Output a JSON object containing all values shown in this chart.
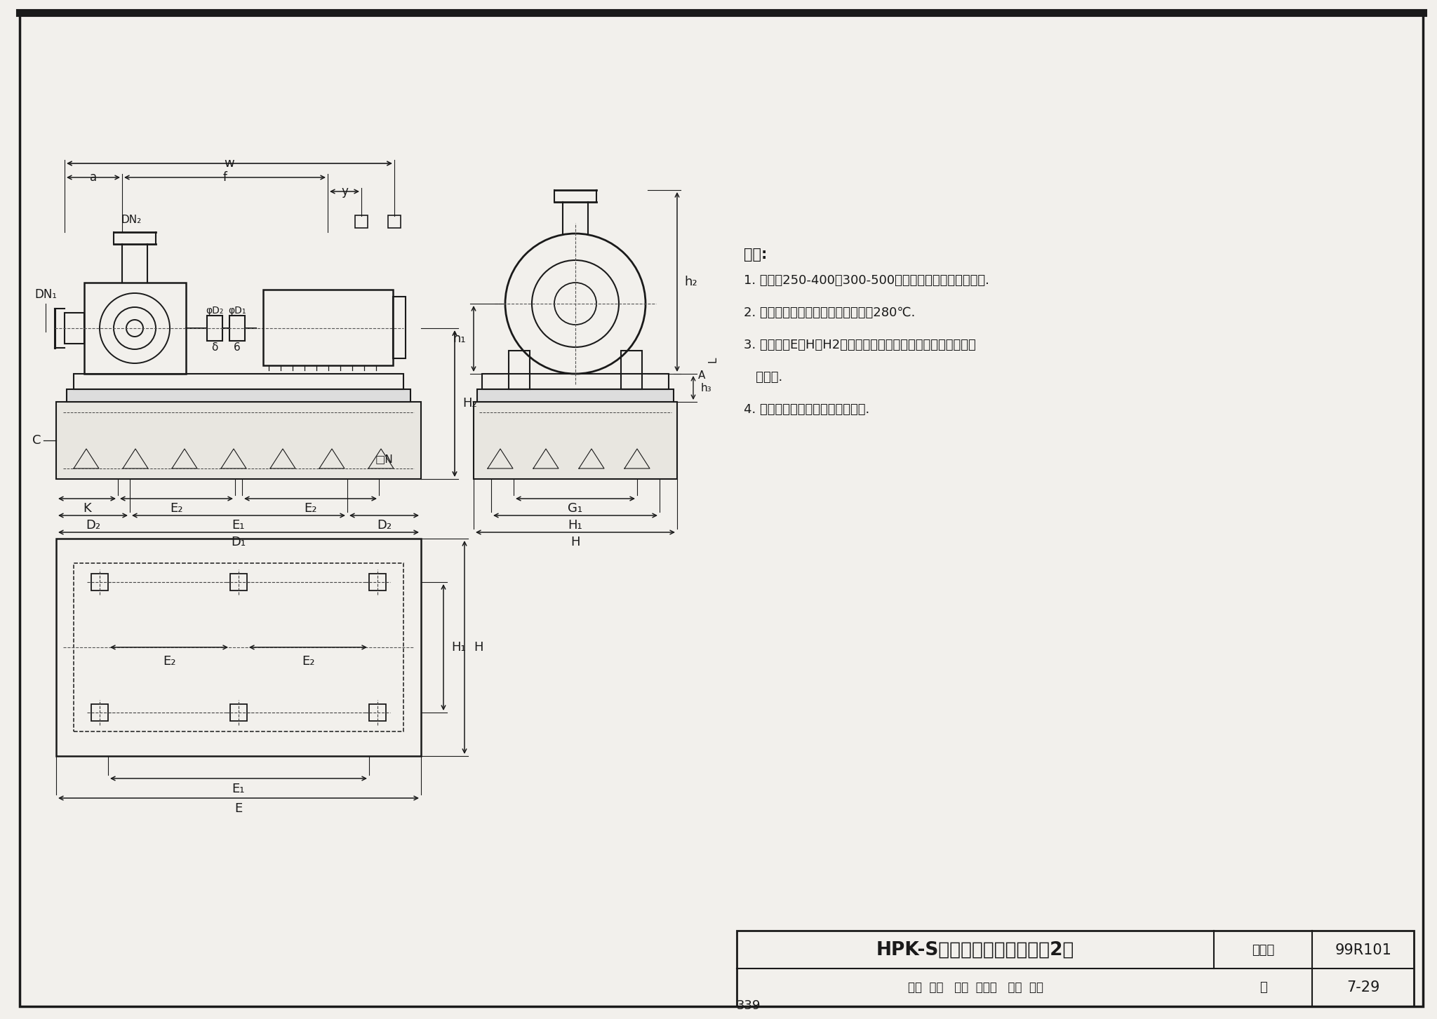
{
  "bg_color": "#f2f0ec",
  "line_color": "#1a1a1a",
  "title_text": "HPK-S型热水循环泵安装图（2）",
  "atlas_label": "图集号",
  "atlas_no": "99R101",
  "page_label": "页",
  "page_no": "7-29",
  "page_bottom": "339",
  "notes_title": "说明:",
  "notes": [
    "1. 本图为250-400至300-500型配用中阿连轴器的安装图.",
    "2. 本产品可输送清水，其温度不高于280℃.",
    "3. 图中所注E、H、H2及基础高出地面的尺寸，设计时按实际情",
    "   况确定.",
    "4. 本图按上海水泵厂产品样本编制."
  ],
  "footer_text": "审核  呼力   校对  郭忠祥   设计  师品"
}
